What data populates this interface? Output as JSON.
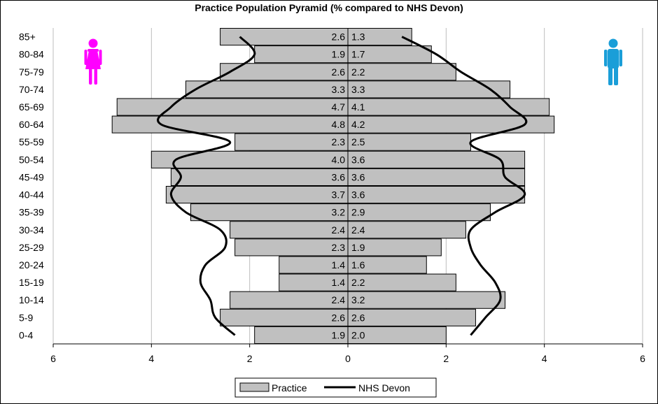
{
  "chart_data": {
    "type": "bar",
    "title": "Practice Population Pyramid (% compared to NHS Devon)",
    "xlabel": "",
    "ylabel": "",
    "xlim": [
      -6,
      6
    ],
    "x_ticks": [
      -6,
      -4,
      -2,
      0,
      2,
      4,
      6
    ],
    "x_tick_labels": [
      "6",
      "4",
      "2",
      "0",
      "2",
      "4",
      "6"
    ],
    "grid": "vertical",
    "legend_position": "bottom",
    "categories": [
      "85+",
      "80-84",
      "75-79",
      "70-74",
      "65-69",
      "60-64",
      "55-59",
      "50-54",
      "45-49",
      "40-44",
      "35-39",
      "30-34",
      "25-29",
      "20-24",
      "15-19",
      "10-14",
      "5-9",
      "0-4"
    ],
    "series": [
      {
        "name": "Practice",
        "kind": "bar",
        "color": "#c0c0c0",
        "female": [
          2.6,
          1.9,
          2.6,
          3.3,
          4.7,
          4.8,
          2.3,
          4.0,
          3.6,
          3.7,
          3.2,
          2.4,
          2.3,
          1.4,
          1.4,
          2.4,
          2.6,
          1.9
        ],
        "male": [
          1.3,
          1.7,
          2.2,
          3.3,
          4.1,
          4.2,
          2.5,
          3.6,
          3.6,
          3.6,
          2.9,
          2.4,
          1.9,
          1.6,
          2.2,
          3.2,
          2.6,
          2.0
        ]
      },
      {
        "name": "NHS Devon",
        "kind": "line",
        "color": "#000000",
        "female": [
          2.2,
          1.9,
          2.4,
          3.1,
          3.6,
          3.8,
          2.4,
          3.5,
          3.4,
          3.6,
          3.3,
          2.6,
          2.5,
          2.9,
          3.0,
          2.8,
          2.7,
          2.3
        ],
        "male": [
          1.1,
          1.8,
          2.3,
          2.9,
          3.3,
          3.6,
          2.5,
          3.1,
          3.2,
          3.6,
          3.0,
          2.5,
          2.5,
          2.7,
          3.0,
          3.1,
          2.8,
          2.5
        ]
      }
    ],
    "icons": {
      "female": "female-figure-icon",
      "male": "male-figure-icon"
    },
    "colors": {
      "female_icon": "#ff00ff",
      "male_icon": "#1a9ed8",
      "bar_fill": "#c0c0c0",
      "line": "#000000"
    }
  }
}
